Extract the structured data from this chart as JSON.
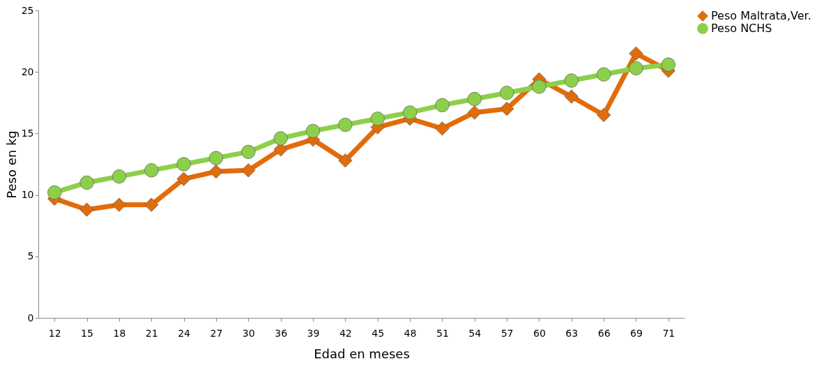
{
  "chart_data": {
    "type": "line",
    "xlabel": "Edad en meses",
    "ylabel": "Peso en kg",
    "categories": [
      "12",
      "15",
      "18",
      "21",
      "24",
      "27",
      "30",
      "36",
      "39",
      "42",
      "45",
      "48",
      "51",
      "54",
      "57",
      "60",
      "63",
      "66",
      "69",
      "71"
    ],
    "series": [
      {
        "name": "Peso Maltrata,Ver.",
        "color": "#e36c0a",
        "marker": "diamond",
        "values": [
          9.7,
          8.8,
          9.2,
          9.2,
          11.3,
          11.9,
          12.0,
          13.7,
          14.5,
          12.8,
          15.5,
          16.2,
          15.4,
          16.7,
          17.0,
          19.4,
          18.0,
          16.5,
          21.5,
          20.1
        ]
      },
      {
        "name": "Peso NCHS",
        "color": "#8cd04a",
        "marker": "circle",
        "values": [
          10.2,
          11.0,
          11.5,
          12.0,
          12.5,
          13.0,
          13.5,
          14.6,
          15.2,
          15.7,
          16.2,
          16.7,
          17.3,
          17.8,
          18.3,
          18.8,
          19.3,
          19.8,
          20.3,
          20.6
        ]
      }
    ],
    "ylim": [
      0,
      25
    ],
    "yticks": [
      0,
      5,
      10,
      15,
      20,
      25
    ],
    "grid": false,
    "legend": "right"
  }
}
